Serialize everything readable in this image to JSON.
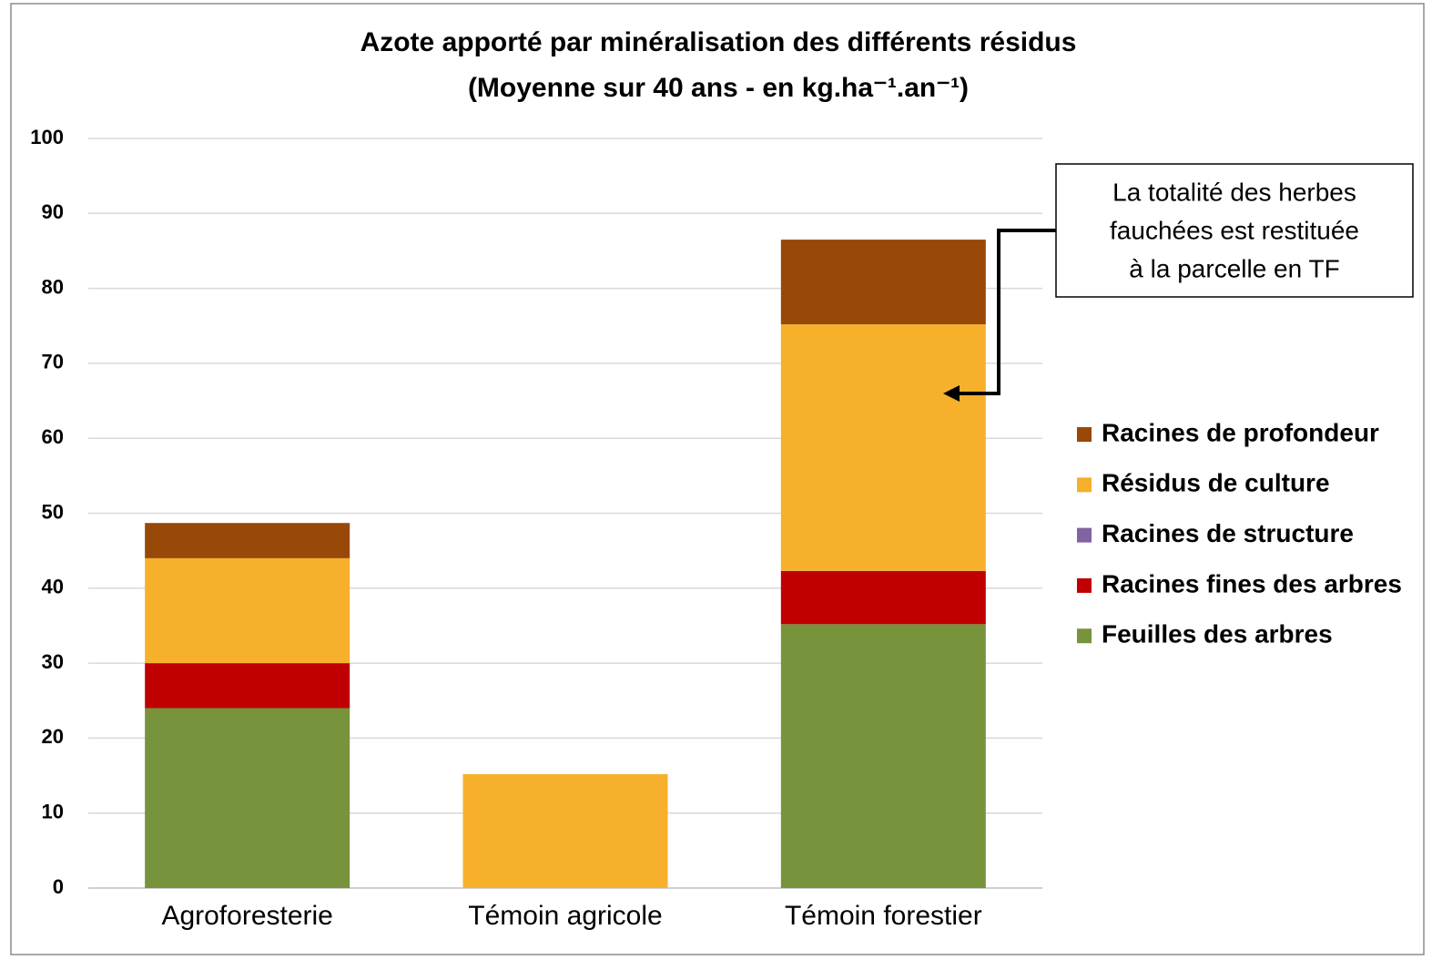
{
  "chart_data": {
    "type": "stacked_bar",
    "title": "Azote apporté par minéralisation des différents résidus",
    "subtitle": "(Moyenne sur 40 ans -  en kg.ha⁻¹.an⁻¹)",
    "categories": [
      "Agroforesterie",
      "Témoin agricole",
      "Témoin forestier"
    ],
    "series": [
      {
        "name": "Feuilles des arbres",
        "color": "#77933c",
        "values": [
          24,
          0,
          35.2
        ]
      },
      {
        "name": "Racines fines des arbres",
        "color": "#c00000",
        "values": [
          6,
          0,
          7.1
        ]
      },
      {
        "name": "Racines de structure",
        "color": "#8064a2",
        "values": [
          0,
          0,
          0
        ]
      },
      {
        "name": "Résidus de culture",
        "color": "#f6b02c",
        "values": [
          14,
          15.2,
          32.9
        ]
      },
      {
        "name": "Racines de profondeur",
        "color": "#984807",
        "values": [
          4.7,
          0,
          11.3
        ]
      }
    ],
    "ylim": [
      0,
      100
    ],
    "yticks": [
      0,
      10,
      20,
      30,
      40,
      50,
      60,
      70,
      80,
      90,
      100
    ],
    "grid": true,
    "legend": "right",
    "annotation": [
      "La totalité des herbes",
      "fauchées est restituée",
      "à la parcelle en TF"
    ]
  }
}
